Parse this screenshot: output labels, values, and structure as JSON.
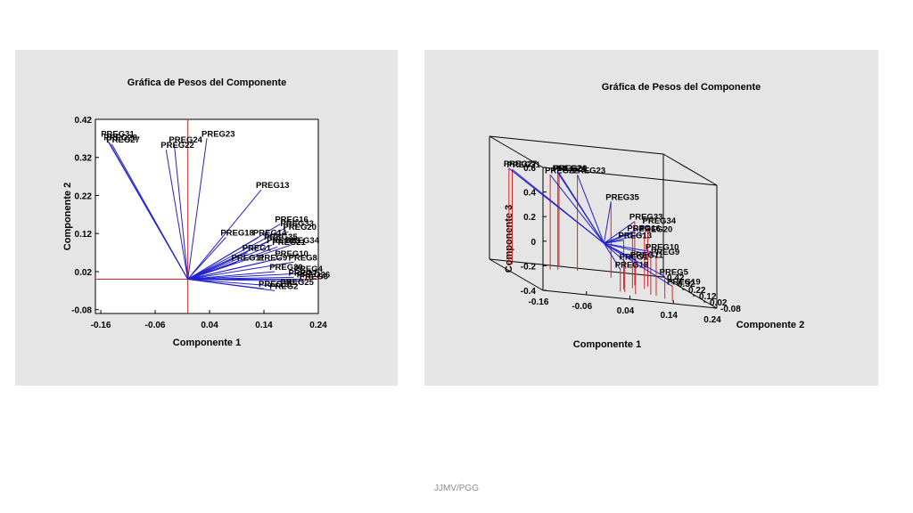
{
  "footer": "JJMV/PGG",
  "chart_data": [
    {
      "type": "biplot",
      "title": "Gráfica de Pesos del Componente",
      "xlabel": "Componente 1",
      "ylabel": "Componente 2",
      "xlim": [
        -0.17,
        0.24
      ],
      "ylim": [
        -0.09,
        0.42
      ],
      "xticks": [
        "-0.16",
        "-0.06",
        "0.04",
        "0.14",
        "0.24"
      ],
      "yticks": [
        "-0.08",
        "0.02",
        "0.12",
        "0.22",
        "0.32",
        "0.42"
      ],
      "origin": [
        0,
        0
      ],
      "line_color": "#2222cc",
      "axis_color": "#dd2222",
      "vectors": [
        {
          "label": "PREG31",
          "x": -0.15,
          "y": 0.37
        },
        {
          "label": "PREG28",
          "x": -0.145,
          "y": 0.36
        },
        {
          "label": "PREG27",
          "x": -0.14,
          "y": 0.355
        },
        {
          "label": "PREG24",
          "x": -0.025,
          "y": 0.355
        },
        {
          "label": "PREG22",
          "x": -0.04,
          "y": 0.34
        },
        {
          "label": "PREG23",
          "x": 0.035,
          "y": 0.37
        },
        {
          "label": "PREG13",
          "x": 0.135,
          "y": 0.235
        },
        {
          "label": "PREG18",
          "x": 0.07,
          "y": 0.11
        },
        {
          "label": "PREG16",
          "x": 0.17,
          "y": 0.145
        },
        {
          "label": "PREG33",
          "x": 0.18,
          "y": 0.135
        },
        {
          "label": "PREG20",
          "x": 0.185,
          "y": 0.125
        },
        {
          "label": "PREG14",
          "x": 0.13,
          "y": 0.11
        },
        {
          "label": "PREG35",
          "x": 0.15,
          "y": 0.1
        },
        {
          "label": "PREG34",
          "x": 0.19,
          "y": 0.09
        },
        {
          "label": "PREG29",
          "x": 0.155,
          "y": 0.09
        },
        {
          "label": "PREG21",
          "x": 0.165,
          "y": 0.085
        },
        {
          "label": "PREG1",
          "x": 0.11,
          "y": 0.07
        },
        {
          "label": "PREG10",
          "x": 0.17,
          "y": 0.055
        },
        {
          "label": "PREG11",
          "x": 0.09,
          "y": 0.045
        },
        {
          "label": "PREG9",
          "x": 0.14,
          "y": 0.045
        },
        {
          "label": "PREG8",
          "x": 0.195,
          "y": 0.045
        },
        {
          "label": "PREG30",
          "x": 0.16,
          "y": 0.02
        },
        {
          "label": "PREG4",
          "x": 0.205,
          "y": 0.015
        },
        {
          "label": "PREG7",
          "x": 0.195,
          "y": 0.005
        },
        {
          "label": "PREG26",
          "x": 0.21,
          "y": 0.0
        },
        {
          "label": "PREG6",
          "x": 0.215,
          "y": -0.005
        },
        {
          "label": "PREG25",
          "x": 0.18,
          "y": -0.02
        },
        {
          "label": "PREG19",
          "x": 0.14,
          "y": -0.025
        },
        {
          "label": "PREG2",
          "x": 0.16,
          "y": -0.03
        }
      ]
    },
    {
      "type": "biplot-3d",
      "title": "Gráfica de Pesos del Componente",
      "xlabel": "Componente 1",
      "ylabel": "Componente 2",
      "zlabel": "Componente 3",
      "xlim": [
        -0.16,
        0.24
      ],
      "ylim": [
        -0.08,
        0.42
      ],
      "zlim": [
        -0.4,
        0.6
      ],
      "xticks": [
        "-0.16",
        "-0.06",
        "0.04",
        "0.14",
        "0.24"
      ],
      "yticks": [
        "-0.08",
        "0.02",
        "0.12",
        "0.22",
        "0.32",
        "0.42"
      ],
      "zticks": [
        "-0.4",
        "-0.2",
        "0",
        "0.2",
        "0.4",
        "0.6"
      ],
      "line_color": "#2222cc",
      "drop_color": "#dd2222",
      "vectors": [
        {
          "label": "PREG27",
          "x": -0.13,
          "y": 0.36,
          "z": 0.38
        },
        {
          "label": "PREG31",
          "x": -0.12,
          "y": 0.37,
          "z": 0.37
        },
        {
          "label": "PREG22",
          "x": -0.04,
          "y": 0.34,
          "z": 0.37
        },
        {
          "label": "PREG24",
          "x": -0.02,
          "y": 0.35,
          "z": 0.39
        },
        {
          "label": "PREG29",
          "x": 0.0,
          "y": 0.42,
          "z": 0.36
        },
        {
          "label": "PREG23",
          "x": 0.03,
          "y": 0.37,
          "z": 0.38
        },
        {
          "label": "PREG35",
          "x": 0.09,
          "y": 0.3,
          "z": 0.22
        },
        {
          "label": "PREG34",
          "x": 0.15,
          "y": 0.2,
          "z": 0.1
        },
        {
          "label": "PREG33",
          "x": 0.12,
          "y": 0.2,
          "z": 0.12
        },
        {
          "label": "PREG20",
          "x": 0.13,
          "y": 0.15,
          "z": 0.05
        },
        {
          "label": "PREG16",
          "x": 0.1,
          "y": 0.14,
          "z": 0.05
        },
        {
          "label": "PREG13",
          "x": 0.07,
          "y": 0.1,
          "z": 0.0
        },
        {
          "label": "PREG10",
          "x": 0.12,
          "y": 0.05,
          "z": -0.05
        },
        {
          "label": "PREG9",
          "x": 0.13,
          "y": 0.04,
          "z": -0.08
        },
        {
          "label": "PREG11",
          "x": 0.08,
          "y": 0.03,
          "z": -0.12
        },
        {
          "label": "PREG1",
          "x": 0.06,
          "y": 0.05,
          "z": -0.15
        },
        {
          "label": "PREG18",
          "x": 0.05,
          "y": 0.05,
          "z": -0.22
        },
        {
          "label": "PREG5",
          "x": 0.14,
          "y": 0.0,
          "z": -0.22
        },
        {
          "label": "PREG19",
          "x": 0.15,
          "y": -0.03,
          "z": -0.28
        }
      ]
    }
  ]
}
